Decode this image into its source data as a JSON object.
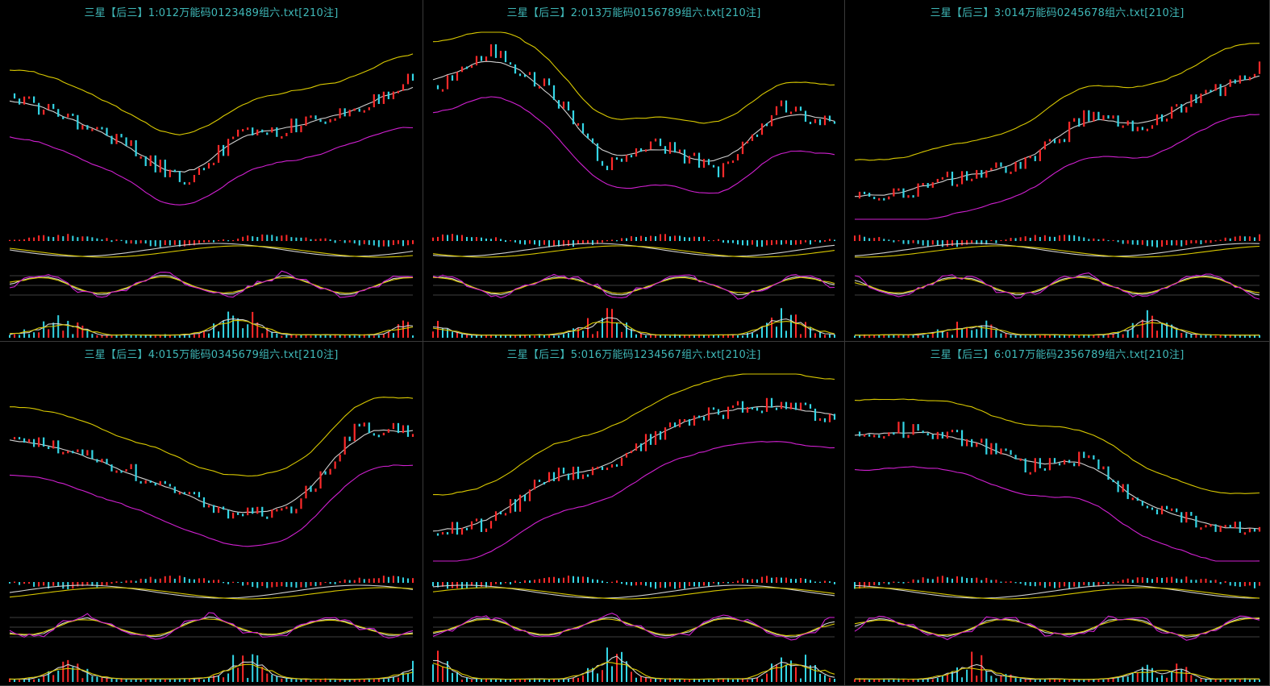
{
  "colors": {
    "background": "#000000",
    "title": "#3fb8b8",
    "up_candle": "#ff2a2a",
    "down_candle": "#33d6e6",
    "upper_band": "#d8c800",
    "middle_band": "#d0d0d0",
    "lower_band": "#d020d0",
    "grid_line": "#555555",
    "divider": "#3a3a3a"
  },
  "panels": [
    {
      "title": "三星【后三】1:012万能码0123489组六.txt[210注]"
    },
    {
      "title": "三星【后三】2:013万能码0156789组六.txt[210注]"
    },
    {
      "title": "三星【后三】3:014万能码0245678组六.txt[210注]"
    },
    {
      "title": "三星【后三】4:015万能码0345679组六.txt[210注]"
    },
    {
      "title": "三星【后三】5:016万能码1234567组六.txt[210注]"
    },
    {
      "title": "三星【后三】6:017万能码2356789组六.txt[210注]"
    }
  ]
}
